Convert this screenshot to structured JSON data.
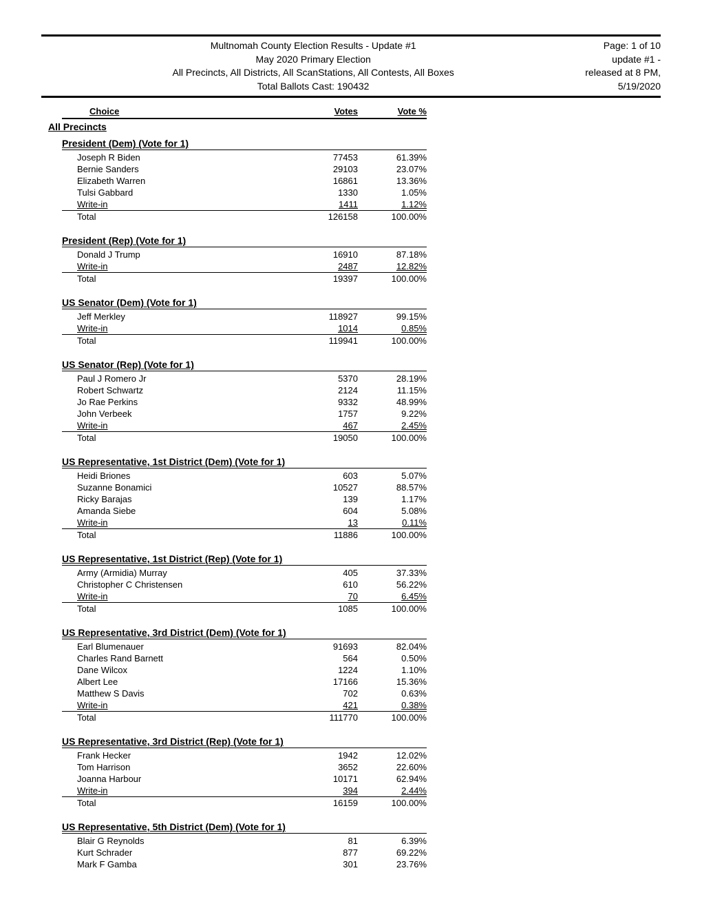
{
  "header": {
    "title_line1": "Multnomah County Election Results - Update #1",
    "title_line2": "May 2020 Primary Election",
    "title_line3": "All Precincts, All Districts, All ScanStations, All Contests, All Boxes",
    "title_line4": "Total Ballots Cast: 190432",
    "page_info": "Page: 1 of 10",
    "update_info": "update #1 -",
    "released_info": "released at 8 PM,",
    "date_info": "5/19/2020"
  },
  "columns": {
    "choice": "Choice",
    "votes": "Votes",
    "vote_pct": "Vote %"
  },
  "precincts_label": "All Precincts",
  "contests": [
    {
      "title": "President (Dem) (Vote for 1)",
      "candidates": [
        {
          "name": "Joseph R Biden",
          "votes": "77453",
          "pct": "61.39%"
        },
        {
          "name": "Bernie Sanders",
          "votes": "29103",
          "pct": "23.07%"
        },
        {
          "name": "Elizabeth Warren",
          "votes": "16861",
          "pct": "13.36%"
        },
        {
          "name": "Tulsi Gabbard",
          "votes": "1330",
          "pct": "1.05%"
        },
        {
          "name": "Write-in",
          "votes": "1411",
          "pct": "1.12%",
          "writein": true
        }
      ],
      "total": {
        "name": "Total",
        "votes": "126158",
        "pct": "100.00%"
      }
    },
    {
      "title": "President (Rep) (Vote for 1)",
      "candidates": [
        {
          "name": "Donald J Trump",
          "votes": "16910",
          "pct": "87.18%"
        },
        {
          "name": "Write-in",
          "votes": "2487",
          "pct": "12.82%",
          "writein": true
        }
      ],
      "total": {
        "name": "Total",
        "votes": "19397",
        "pct": "100.00%"
      }
    },
    {
      "title": "US Senator (Dem) (Vote for 1)",
      "candidates": [
        {
          "name": "Jeff Merkley",
          "votes": "118927",
          "pct": "99.15%"
        },
        {
          "name": "Write-in",
          "votes": "1014",
          "pct": "0.85%",
          "writein": true
        }
      ],
      "total": {
        "name": "Total",
        "votes": "119941",
        "pct": "100.00%"
      }
    },
    {
      "title": "US Senator (Rep) (Vote for 1)",
      "candidates": [
        {
          "name": "Paul J Romero Jr",
          "votes": "5370",
          "pct": "28.19%"
        },
        {
          "name": "Robert Schwartz",
          "votes": "2124",
          "pct": "11.15%"
        },
        {
          "name": "Jo Rae Perkins",
          "votes": "9332",
          "pct": "48.99%"
        },
        {
          "name": "John Verbeek",
          "votes": "1757",
          "pct": "9.22%"
        },
        {
          "name": "Write-in",
          "votes": "467",
          "pct": "2.45%",
          "writein": true
        }
      ],
      "total": {
        "name": "Total",
        "votes": "19050",
        "pct": "100.00%"
      }
    },
    {
      "title": "US Representative, 1st District (Dem) (Vote for 1)",
      "candidates": [
        {
          "name": "Heidi Briones",
          "votes": "603",
          "pct": "5.07%"
        },
        {
          "name": "Suzanne Bonamici",
          "votes": "10527",
          "pct": "88.57%"
        },
        {
          "name": "Ricky Barajas",
          "votes": "139",
          "pct": "1.17%"
        },
        {
          "name": "Amanda Siebe",
          "votes": "604",
          "pct": "5.08%"
        },
        {
          "name": "Write-in",
          "votes": "13",
          "pct": "0.11%",
          "writein": true
        }
      ],
      "total": {
        "name": "Total",
        "votes": "11886",
        "pct": "100.00%"
      }
    },
    {
      "title": "US Representative, 1st District (Rep) (Vote for 1)",
      "candidates": [
        {
          "name": "Army (Armidia) Murray",
          "votes": "405",
          "pct": "37.33%"
        },
        {
          "name": "Christopher C Christensen",
          "votes": "610",
          "pct": "56.22%"
        },
        {
          "name": "Write-in",
          "votes": "70",
          "pct": "6.45%",
          "writein": true
        }
      ],
      "total": {
        "name": "Total",
        "votes": "1085",
        "pct": "100.00%"
      }
    },
    {
      "title": "US Representative, 3rd District (Dem) (Vote for 1)",
      "candidates": [
        {
          "name": "Earl Blumenauer",
          "votes": "91693",
          "pct": "82.04%"
        },
        {
          "name": "Charles Rand Barnett",
          "votes": "564",
          "pct": "0.50%"
        },
        {
          "name": "Dane Wilcox",
          "votes": "1224",
          "pct": "1.10%"
        },
        {
          "name": "Albert Lee",
          "votes": "17166",
          "pct": "15.36%"
        },
        {
          "name": "Matthew S Davis",
          "votes": "702",
          "pct": "0.63%"
        },
        {
          "name": "Write-in",
          "votes": "421",
          "pct": "0.38%",
          "writein": true
        }
      ],
      "total": {
        "name": "Total",
        "votes": "111770",
        "pct": "100.00%"
      }
    },
    {
      "title": "US Representative, 3rd District (Rep) (Vote for 1)",
      "candidates": [
        {
          "name": "Frank Hecker",
          "votes": "1942",
          "pct": "12.02%"
        },
        {
          "name": "Tom Harrison",
          "votes": "3652",
          "pct": "22.60%"
        },
        {
          "name": "Joanna Harbour",
          "votes": "10171",
          "pct": "62.94%"
        },
        {
          "name": "Write-in",
          "votes": "394",
          "pct": "2.44%",
          "writein": true
        }
      ],
      "total": {
        "name": "Total",
        "votes": "16159",
        "pct": "100.00%"
      }
    },
    {
      "title": "US Representative, 5th District (Dem) (Vote for 1)",
      "candidates": [
        {
          "name": "Blair G Reynolds",
          "votes": "81",
          "pct": "6.39%"
        },
        {
          "name": "Kurt Schrader",
          "votes": "877",
          "pct": "69.22%"
        },
        {
          "name": "Mark F Gamba",
          "votes": "301",
          "pct": "23.76%"
        }
      ],
      "total": null
    }
  ]
}
